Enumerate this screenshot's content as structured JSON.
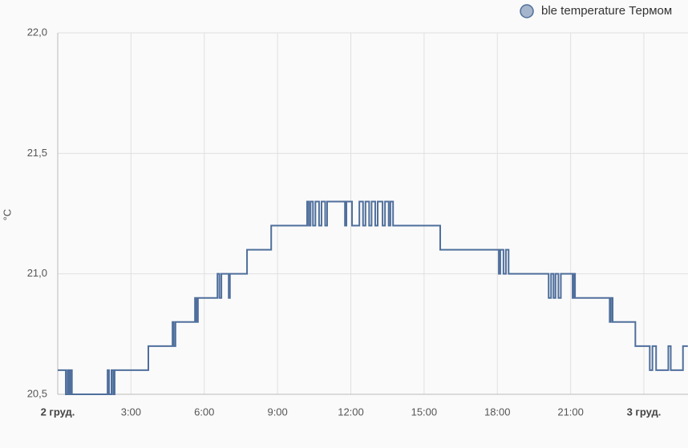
{
  "chart_data": {
    "type": "line",
    "step": true,
    "y_label": "°C",
    "series": [
      {
        "name": "ble temperature Термом",
        "color": "#4f6f9c",
        "x": [
          0,
          0.33,
          0.4,
          0.46,
          0.52,
          0.58,
          2.04,
          2.1,
          2.2,
          2.27,
          2.33,
          3.71,
          4.7,
          4.75,
          4.82,
          5.62,
          5.68,
          5.74,
          6.54,
          6.62,
          6.7,
          7.0,
          7.05,
          7.75,
          8.74,
          10.21,
          10.28,
          10.35,
          10.45,
          10.55,
          10.7,
          10.8,
          10.95,
          11.03,
          11.76,
          11.82,
          12.05,
          12.35,
          12.5,
          12.6,
          12.75,
          12.85,
          13.0,
          13.1,
          13.3,
          13.4,
          13.55,
          13.62,
          13.73,
          15.66,
          18.06,
          18.12,
          18.25,
          18.35,
          18.46,
          20.1,
          20.2,
          20.3,
          20.38,
          20.5,
          20.6,
          21.08,
          21.12,
          21.18,
          22.6,
          22.65,
          22.72,
          23.65,
          24.24,
          24.35,
          24.5,
          25.0,
          25.1,
          25.6,
          25.8
        ],
        "values": [
          20.6,
          20.5,
          20.6,
          20.5,
          20.6,
          20.5,
          20.6,
          20.5,
          20.6,
          20.5,
          20.6,
          20.7,
          20.8,
          20.7,
          20.8,
          20.9,
          20.8,
          20.9,
          21.0,
          20.9,
          21.0,
          20.9,
          21.0,
          21.1,
          21.2,
          21.3,
          21.2,
          21.3,
          21.2,
          21.3,
          21.2,
          21.3,
          21.2,
          21.3,
          21.2,
          21.3,
          21.2,
          21.3,
          21.2,
          21.3,
          21.2,
          21.3,
          21.2,
          21.3,
          21.2,
          21.3,
          21.2,
          21.3,
          21.2,
          21.1,
          21.0,
          21.1,
          21.0,
          21.1,
          21.0,
          20.9,
          21.0,
          20.9,
          21.0,
          20.9,
          21.0,
          20.9,
          21.0,
          20.9,
          20.8,
          20.9,
          20.8,
          20.7,
          20.6,
          20.7,
          20.6,
          20.7,
          20.6,
          20.7,
          20.7
        ]
      }
    ],
    "xlim": [
      0,
      25.8
    ],
    "xticks": [
      {
        "value": 0,
        "label": "2 груд."
      },
      {
        "value": 3,
        "label": "3:00"
      },
      {
        "value": 6,
        "label": "6:00"
      },
      {
        "value": 9,
        "label": "9:00"
      },
      {
        "value": 12,
        "label": "12:00"
      },
      {
        "value": 15,
        "label": "15:00"
      },
      {
        "value": 18,
        "label": "18:00"
      },
      {
        "value": 21,
        "label": "21:00"
      },
      {
        "value": 24,
        "label": "3 груд."
      }
    ],
    "ylim": [
      20.5,
      22.0
    ],
    "yticks": [
      {
        "value": 20.5,
        "label": "20,5"
      },
      {
        "value": 21.0,
        "label": "21,0"
      },
      {
        "value": 21.5,
        "label": "21,5"
      },
      {
        "value": 22.0,
        "label": "22,0"
      }
    ],
    "grid": true
  }
}
